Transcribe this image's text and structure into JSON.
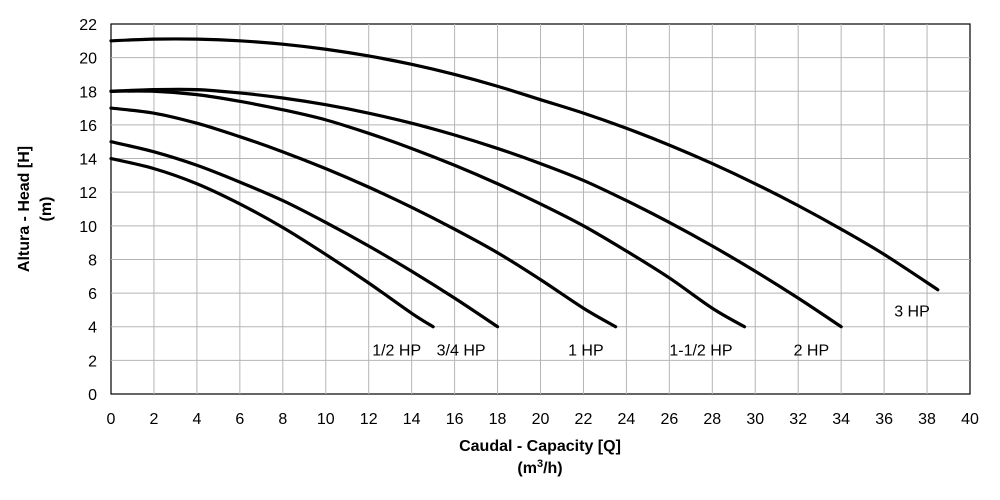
{
  "chart_data": {
    "type": "line",
    "xlabel": "Caudal - Capacity [Q]",
    "xlabel_unit": {
      "pre": "(m",
      "sup": "3",
      "post": "/h)"
    },
    "ylabel": "Altura - Head [H]",
    "ylabel_unit": "(m)",
    "xlim": [
      0,
      40
    ],
    "ylim": [
      0,
      22
    ],
    "xticks": [
      0,
      2,
      4,
      6,
      8,
      10,
      12,
      14,
      16,
      18,
      20,
      22,
      24,
      26,
      28,
      30,
      32,
      34,
      36,
      38,
      40
    ],
    "yticks": [
      0,
      2,
      4,
      6,
      8,
      10,
      12,
      14,
      16,
      18,
      20,
      22
    ],
    "grid": true,
    "legend": "inline labels at curve ends",
    "series": [
      {
        "name": "1/2 HP",
        "x": [
          0,
          2,
          4,
          6,
          8,
          10,
          12,
          14,
          15
        ],
        "y": [
          14.0,
          13.4,
          12.5,
          11.3,
          9.9,
          8.3,
          6.6,
          4.8,
          4.0
        ]
      },
      {
        "name": "3/4 HP",
        "x": [
          0,
          2,
          4,
          6,
          8,
          10,
          12,
          14,
          16,
          18
        ],
        "y": [
          15.0,
          14.4,
          13.6,
          12.6,
          11.5,
          10.2,
          8.8,
          7.3,
          5.7,
          4.0
        ]
      },
      {
        "name": "1 HP",
        "x": [
          0,
          2,
          4,
          6,
          8,
          10,
          12,
          14,
          16,
          18,
          20,
          22,
          23.5
        ],
        "y": [
          17.0,
          16.7,
          16.1,
          15.3,
          14.4,
          13.4,
          12.3,
          11.1,
          9.8,
          8.4,
          6.8,
          5.1,
          4.0
        ]
      },
      {
        "name": "1-1/2 HP",
        "x": [
          0,
          2,
          4,
          6,
          8,
          10,
          12,
          14,
          16,
          18,
          20,
          22,
          24,
          26,
          28,
          29.5
        ],
        "y": [
          18.0,
          18.0,
          17.8,
          17.4,
          16.9,
          16.3,
          15.5,
          14.6,
          13.6,
          12.5,
          11.3,
          10.0,
          8.5,
          6.9,
          5.1,
          4.0
        ]
      },
      {
        "name": "2 HP",
        "x": [
          0,
          2,
          4,
          6,
          8,
          10,
          12,
          14,
          16,
          18,
          20,
          22,
          24,
          26,
          28,
          30,
          32,
          34
        ],
        "y": [
          18.0,
          18.1,
          18.1,
          17.9,
          17.6,
          17.2,
          16.7,
          16.1,
          15.4,
          14.6,
          13.7,
          12.7,
          11.5,
          10.2,
          8.8,
          7.3,
          5.7,
          4.0
        ]
      },
      {
        "name": "3 HP",
        "x": [
          0,
          2,
          4,
          6,
          8,
          10,
          12,
          14,
          16,
          18,
          20,
          22,
          24,
          26,
          28,
          30,
          32,
          34,
          36,
          38.5
        ],
        "y": [
          21.0,
          21.1,
          21.1,
          21.0,
          20.8,
          20.5,
          20.1,
          19.6,
          19.0,
          18.3,
          17.5,
          16.7,
          15.8,
          14.8,
          13.7,
          12.5,
          11.2,
          9.8,
          8.3,
          6.2
        ]
      }
    ]
  }
}
